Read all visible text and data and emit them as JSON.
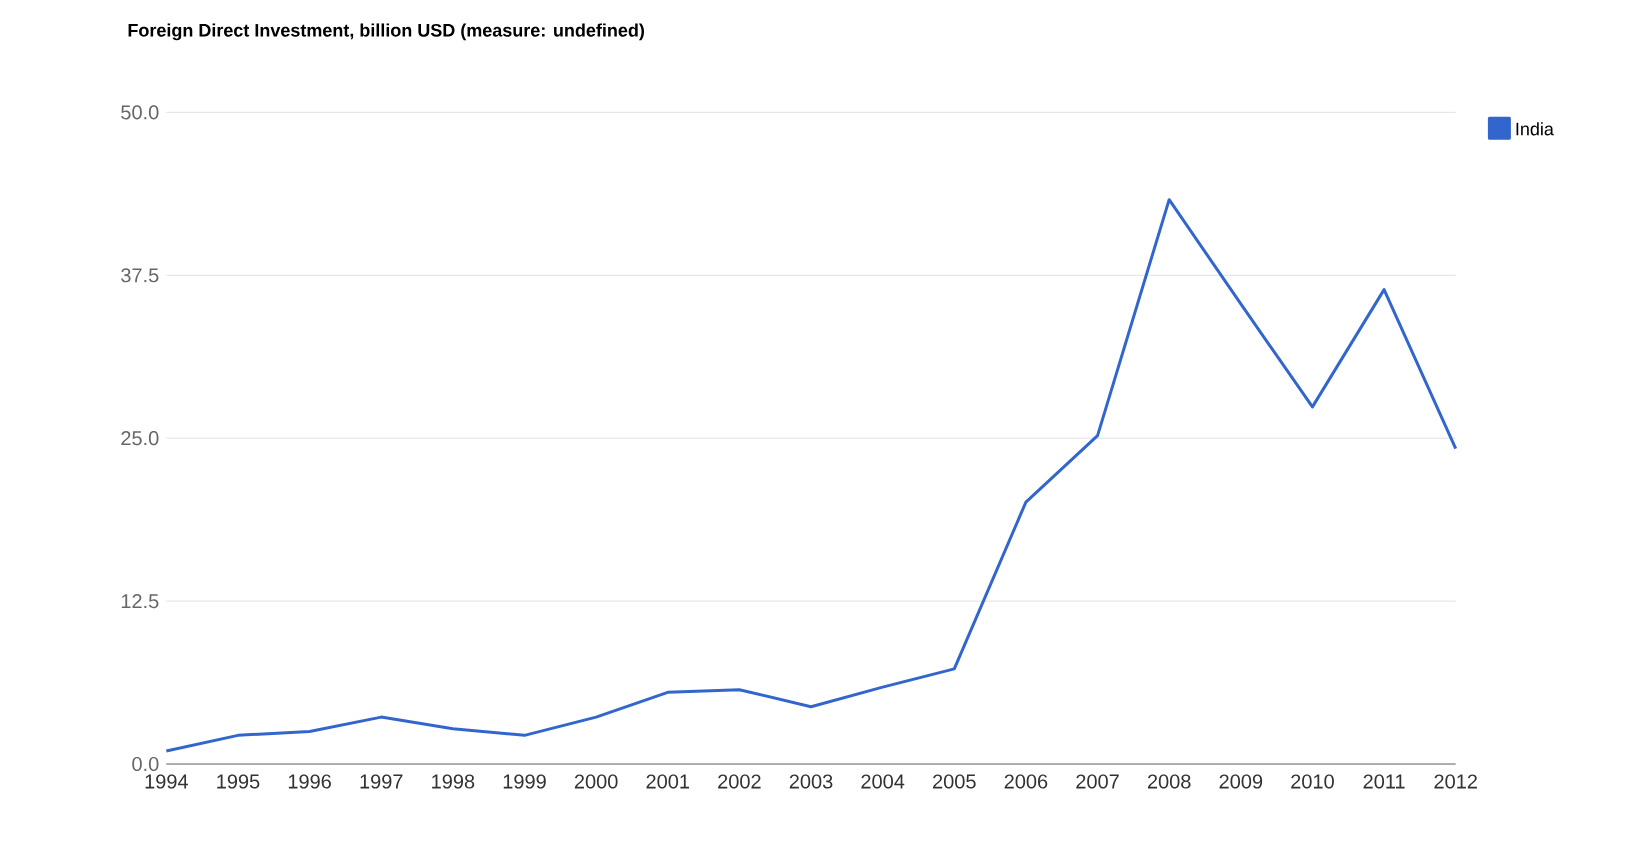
{
  "chart_data": {
    "type": "line",
    "title": "**Foreign Direct Investment, billion USD (measure: undefined)**",
    "x": [
      1994,
      1995,
      1996,
      1997,
      1998,
      1999,
      2000,
      2001,
      2002,
      2003,
      2004,
      2005,
      2006,
      2007,
      2008,
      2009,
      2010,
      2011,
      2012
    ],
    "series": [
      {
        "name": "India",
        "color": "#3366cc",
        "values": [
          1.0,
          2.2,
          2.5,
          3.6,
          2.7,
          2.2,
          3.6,
          5.5,
          5.7,
          4.4,
          5.9,
          7.3,
          20.1,
          25.2,
          43.3,
          35.3,
          27.4,
          36.4,
          24.2
        ]
      }
    ],
    "xlim": [
      1994,
      2012
    ],
    "xticks": [
      1994,
      1995,
      1996,
      1997,
      1998,
      1999,
      2000,
      2001,
      2002,
      2003,
      2004,
      2005,
      2006,
      2007,
      2008,
      2009,
      2010,
      2011,
      2012
    ],
    "ylim": [
      0,
      50
    ],
    "yticks": [
      {
        "value": 0,
        "label": "0.0"
      },
      {
        "value": 12.5,
        "label": "12.5"
      },
      {
        "value": 25,
        "label": "25.0"
      },
      {
        "value": 37.5,
        "label": "37.5"
      },
      {
        "value": 50,
        "label": "50.0"
      }
    ],
    "grid": "y",
    "legend": "right"
  }
}
